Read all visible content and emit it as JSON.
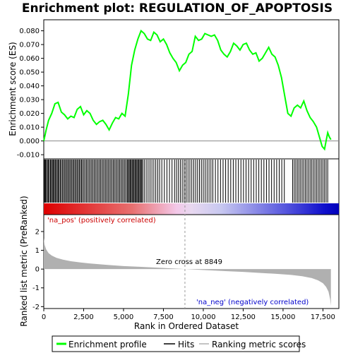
{
  "chart_data": {
    "type": "line",
    "title": "Enrichment plot: REGULATION_OF_APOPTOSIS",
    "top_panel": {
      "ylabel": "Enrichment score (ES)",
      "ylim": [
        -0.013,
        0.088
      ],
      "yticks": [
        -0.01,
        0.0,
        0.01,
        0.02,
        0.03,
        0.04,
        0.05,
        0.06,
        0.07,
        0.08
      ],
      "ytick_labels": [
        "-0.010",
        "0.000",
        "0.010",
        "0.020",
        "0.030",
        "0.040",
        "0.050",
        "0.060",
        "0.070",
        "0.080"
      ],
      "series": [
        {
          "name": "Enrichment profile",
          "color": "#00ff00",
          "x": [
            0,
            150,
            300,
            500,
            700,
            900,
            1100,
            1300,
            1500,
            1700,
            1900,
            2100,
            2300,
            2500,
            2700,
            2900,
            3100,
            3300,
            3500,
            3700,
            3900,
            4100,
            4300,
            4500,
            4700,
            4900,
            5100,
            5300,
            5500,
            5700,
            5900,
            6100,
            6300,
            6500,
            6700,
            6900,
            7100,
            7300,
            7500,
            7700,
            7900,
            8100,
            8300,
            8500,
            8700,
            8900,
            9100,
            9300,
            9500,
            9700,
            9900,
            10100,
            10300,
            10500,
            10700,
            10900,
            11100,
            11300,
            11500,
            11700,
            11900,
            12100,
            12300,
            12500,
            12700,
            12900,
            13100,
            13300,
            13500,
            13700,
            13900,
            14100,
            14300,
            14500,
            14700,
            14900,
            15100,
            15300,
            15500,
            15700,
            15900,
            16100,
            16300,
            16500,
            16700,
            16900,
            17100,
            17300,
            17450,
            17600,
            17700,
            17800,
            17900,
            18000
          ],
          "y": [
            0.0,
            0.008,
            0.015,
            0.02,
            0.027,
            0.028,
            0.021,
            0.019,
            0.016,
            0.018,
            0.017,
            0.023,
            0.025,
            0.019,
            0.022,
            0.02,
            0.015,
            0.012,
            0.014,
            0.015,
            0.012,
            0.008,
            0.013,
            0.017,
            0.016,
            0.02,
            0.018,
            0.034,
            0.055,
            0.066,
            0.074,
            0.08,
            0.078,
            0.074,
            0.073,
            0.079,
            0.077,
            0.072,
            0.074,
            0.07,
            0.064,
            0.06,
            0.057,
            0.051,
            0.055,
            0.057,
            0.063,
            0.065,
            0.076,
            0.073,
            0.074,
            0.078,
            0.077,
            0.076,
            0.077,
            0.073,
            0.066,
            0.063,
            0.061,
            0.065,
            0.071,
            0.069,
            0.066,
            0.07,
            0.071,
            0.066,
            0.063,
            0.064,
            0.058,
            0.06,
            0.064,
            0.068,
            0.063,
            0.061,
            0.055,
            0.046,
            0.033,
            0.02,
            0.018,
            0.024,
            0.026,
            0.024,
            0.029,
            0.022,
            0.017,
            0.014,
            0.01,
            0.002,
            -0.004,
            -0.006,
            0.0,
            0.006,
            0.003,
            0.001
          ]
        }
      ]
    },
    "hits_panel": {
      "name": "Hits",
      "positions": [
        20,
        60,
        110,
        170,
        230,
        290,
        350,
        420,
        480,
        540,
        600,
        660,
        720,
        780,
        850,
        910,
        970,
        1040,
        1110,
        1180,
        1250,
        1320,
        1390,
        1460,
        1530,
        1600,
        1670,
        1740,
        1810,
        1880,
        1950,
        2020,
        2090,
        2160,
        2230,
        2300,
        2370,
        2440,
        2520,
        2600,
        2680,
        2760,
        2840,
        2920,
        3000,
        3080,
        3160,
        3240,
        3320,
        3400,
        3480,
        3560,
        3640,
        3720,
        3800,
        3880,
        3960,
        4040,
        4120,
        4200,
        4280,
        4360,
        4440,
        4520,
        4600,
        4680,
        4760,
        4840,
        4920,
        5000,
        5080,
        5160,
        5240,
        5300,
        5360,
        5420,
        5480,
        5540,
        5600,
        5660,
        5720,
        5780,
        5840,
        5900,
        5960,
        6020,
        6080,
        6140,
        6200,
        6300,
        6420,
        6540,
        6660,
        6780,
        6900,
        7020,
        7140,
        7260,
        7400,
        7560,
        7720,
        7880,
        8040,
        8200,
        8320,
        8440,
        8560,
        8680,
        8800,
        8920,
        9040,
        9160,
        9280,
        9400,
        9520,
        9640,
        9760,
        9880,
        10000,
        10120,
        10240,
        10360,
        10480,
        10600,
        10760,
        10920,
        11080,
        11240,
        11400,
        11560,
        11720,
        11880,
        12040,
        12200,
        12360,
        12520,
        12680,
        12840,
        13000,
        13160,
        13320,
        13480,
        13640,
        13800,
        13960,
        14120,
        14280,
        14440,
        14600,
        14760,
        14920,
        15080,
        15600,
        15700,
        15800,
        15900,
        16000,
        16100,
        16200,
        16300,
        16400,
        16500,
        16600,
        16700,
        16800,
        16900,
        17000,
        17100,
        17200,
        17300,
        17400,
        17500,
        17600,
        17700,
        17800
      ]
    },
    "ranking_panel": {
      "name": "Ranking metric scores",
      "ylabel": "Ranked list metric (PreRanked)",
      "xlabel": "Rank in Ordered Dataset",
      "xlim": [
        0,
        18500
      ],
      "xticks": [
        0,
        2500,
        5000,
        7500,
        10000,
        12500,
        15000,
        17500
      ],
      "xtick_labels": [
        "0",
        "2,500",
        "5,000",
        "7,500",
        "10,000",
        "12,500",
        "15,000",
        "17,500"
      ],
      "ylim": [
        -2.1,
        2.9
      ],
      "yticks": [
        -2,
        -1,
        0,
        1,
        2
      ],
      "ytick_labels": [
        "-2",
        "-1",
        "0",
        "1",
        "2"
      ],
      "x": [
        0,
        50,
        150,
        300,
        500,
        800,
        1200,
        1700,
        2300,
        3000,
        4000,
        5000,
        6000,
        7000,
        8000,
        8849,
        9500,
        10500,
        11500,
        12500,
        13500,
        14500,
        15500,
        16200,
        16800,
        17200,
        17500,
        17700,
        17850,
        17950,
        18000
      ],
      "values": [
        1.65,
        1.3,
        1.05,
        0.85,
        0.72,
        0.6,
        0.5,
        0.42,
        0.35,
        0.29,
        0.22,
        0.16,
        0.12,
        0.08,
        0.04,
        0.0,
        -0.03,
        -0.07,
        -0.11,
        -0.15,
        -0.2,
        -0.25,
        -0.31,
        -0.38,
        -0.48,
        -0.6,
        -0.75,
        -0.95,
        -1.2,
        -1.6,
        -1.95
      ],
      "zero_cross_rank": 8849,
      "annotations": {
        "positive": "'na_pos' (positively correlated)",
        "negative": "'na_neg' (negatively correlated)",
        "zero_cross": "Zero cross at 8849"
      }
    },
    "legend": {
      "placement": "bottom",
      "entries": [
        "Enrichment profile",
        "Hits",
        "Ranking metric scores"
      ]
    },
    "colors": {
      "profile": "#00ff00",
      "positive_label": "#cc0000",
      "negative_label": "#0000cc",
      "metric_fill": "#b0b0b0",
      "zero_line": "#999999"
    }
  }
}
